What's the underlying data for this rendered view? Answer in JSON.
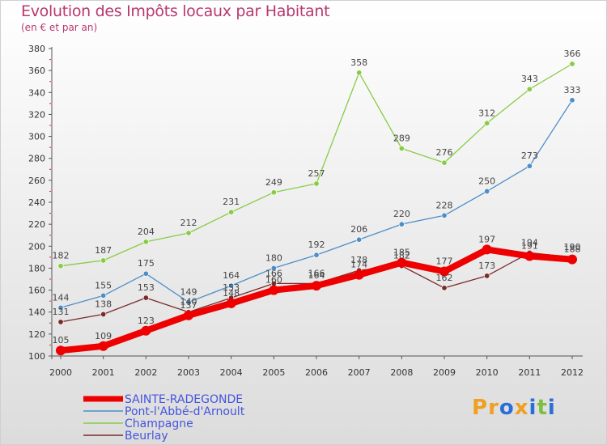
{
  "title": "Evolution des Impôts locaux par Habitant",
  "subtitle": "(en € et par an)",
  "logo": {
    "text": "Proxiti",
    "letters": [
      "P",
      "r",
      "o",
      "x",
      "i",
      "t",
      "i"
    ],
    "colors": [
      "#f0a020",
      "#f0a020",
      "#2a6fd8",
      "#f0a020",
      "#2a6fd8",
      "#7cc040",
      "#2a6fd8"
    ]
  },
  "chart_data": {
    "type": "line",
    "title": "Evolution des Impôts locaux par Habitant",
    "subtitle": "(en € et par an)",
    "x": [
      "2000",
      "2001",
      "2002",
      "2003",
      "2004",
      "2005",
      "2006",
      "2007",
      "2008",
      "2009",
      "2010",
      "2011",
      "2012"
    ],
    "ylim": [
      100,
      380
    ],
    "yticks": [
      "100",
      "120",
      "140",
      "160",
      "180",
      "200",
      "220",
      "240",
      "260",
      "280",
      "300",
      "320",
      "340",
      "360",
      "380"
    ],
    "series": [
      {
        "name": "Champagne",
        "color": "#88cc44",
        "width": 1.3,
        "marker": 3.2,
        "values": [
          182,
          187,
          204,
          212,
          231,
          249,
          257,
          358,
          289,
          276,
          312,
          343,
          366
        ],
        "labels": [
          "182",
          "187",
          "204",
          "212",
          "231",
          "249",
          "257",
          "358",
          "289",
          "276",
          "312",
          "343",
          "366"
        ]
      },
      {
        "name": "Pont-l'Abbé-d'Arnoult",
        "color": "#4d8ec8",
        "width": 1.3,
        "marker": 3.2,
        "values": [
          144,
          155,
          175,
          149,
          164,
          180,
          192,
          206,
          220,
          228,
          250,
          273,
          333
        ],
        "labels": [
          "144",
          "155",
          "175",
          "149",
          "164",
          "180",
          "192",
          "206",
          "220",
          "228",
          "250",
          "273",
          "333"
        ]
      },
      {
        "name": "Beurlay",
        "color": "#7a2a2a",
        "width": 1.3,
        "marker": 3.2,
        "values": [
          131,
          138,
          153,
          140,
          153,
          166,
          166,
          178,
          182,
          162,
          173,
          194,
          190
        ],
        "labels": [
          "131",
          "138",
          "153",
          "140",
          "153",
          "166",
          "166",
          "178",
          "182",
          "162",
          "173",
          "194",
          "190"
        ]
      },
      {
        "name": "SAINTE-RADEGONDE",
        "color": "#ee0000",
        "width": 8,
        "marker": 6,
        "values": [
          105,
          109,
          123,
          137,
          148,
          160,
          164,
          174,
          185,
          177,
          197,
          191,
          188
        ],
        "labels": [
          "105",
          "109",
          "123",
          "137",
          "148",
          "160",
          "164",
          "174",
          "185",
          "177",
          "197",
          "191",
          "188"
        ]
      }
    ],
    "legend": {
      "position": "bottom-left",
      "entries": [
        {
          "name": "SAINTE-RADEGONDE",
          "color": "#ee0000",
          "thick": true
        },
        {
          "name": "Pont-l'Abbé-d'Arnoult",
          "color": "#4d8ec8",
          "thick": false
        },
        {
          "name": "Champagne",
          "color": "#88cc44",
          "thick": false
        },
        {
          "name": "Beurlay",
          "color": "#7a2a2a",
          "thick": false
        }
      ]
    },
    "grid": false
  }
}
